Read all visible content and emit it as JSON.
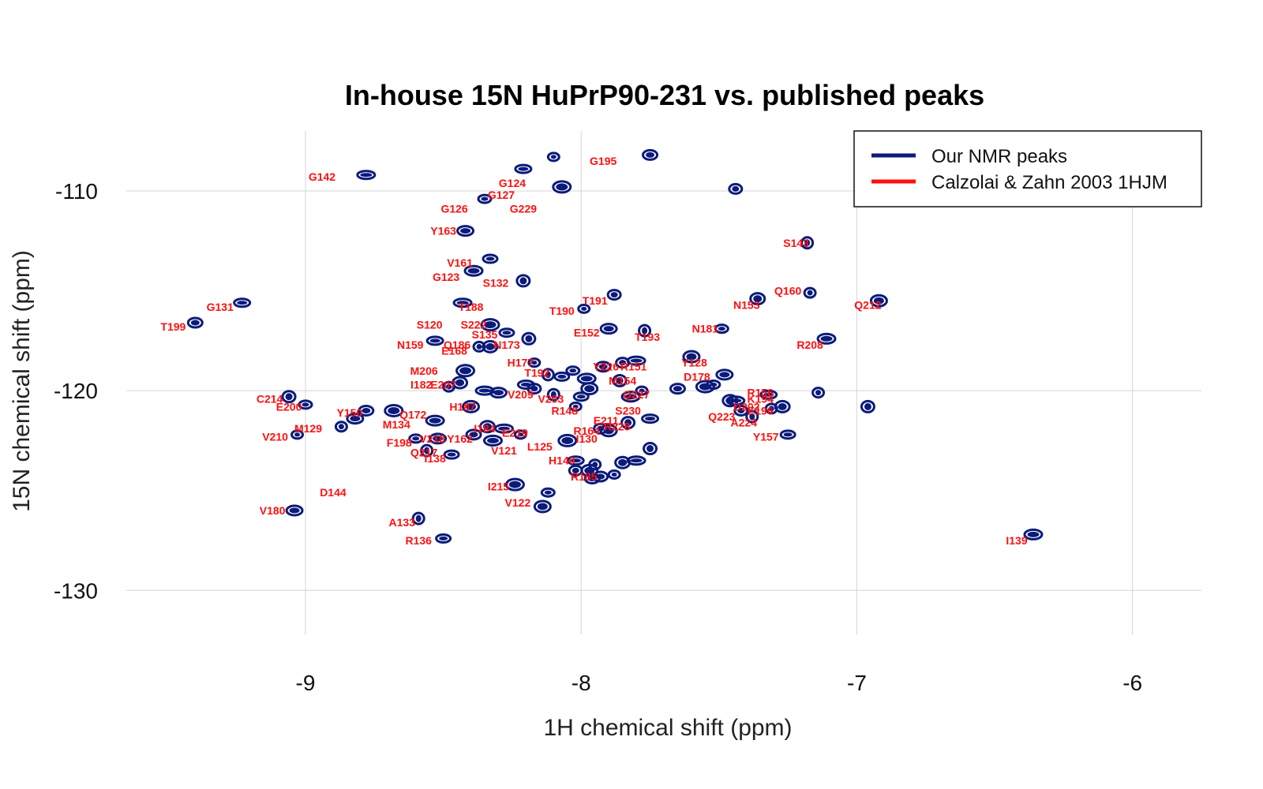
{
  "chart_data": {
    "type": "scatter",
    "title": "In-house 15N HuPrP90-231 vs. published peaks",
    "xlabel": "1H chemical shift (ppm)",
    "ylabel": "15N chemical shift (ppm)",
    "xlim": [
      -9.65,
      -5.75
    ],
    "ylim": [
      -132.2,
      -107.0
    ],
    "x_ticks": [
      -9,
      -8,
      -7,
      -6
    ],
    "y_ticks": [
      -110,
      -120,
      -130
    ],
    "x_tick_labels": [
      "-9",
      "-8",
      "-7",
      "-6"
    ],
    "y_tick_labels": [
      "-110",
      "-120",
      "-130"
    ],
    "grid": true,
    "legend_position": "top-right",
    "colors": {
      "ours": "#0b1b7a",
      "published": "#ff1010",
      "grid": "#d4d4d4"
    },
    "series": [
      {
        "name": "Our NMR peaks",
        "points": [
          [
            -8.1,
            -108.3
          ],
          [
            -7.75,
            -108.2
          ],
          [
            -8.07,
            -109.8
          ],
          [
            -8.35,
            -110.4
          ],
          [
            -8.42,
            -112.0
          ],
          [
            -7.18,
            -112.6
          ],
          [
            -8.33,
            -113.4
          ],
          [
            -8.39,
            -114.0
          ],
          [
            -8.21,
            -114.5
          ],
          [
            -9.23,
            -115.6
          ],
          [
            -7.17,
            -115.1
          ],
          [
            -7.36,
            -115.4
          ],
          [
            -8.43,
            -115.6
          ],
          [
            -7.88,
            -115.2
          ],
          [
            -6.92,
            -115.5
          ],
          [
            -7.99,
            -115.9
          ],
          [
            -9.4,
            -116.6
          ],
          [
            -8.33,
            -116.7
          ],
          [
            -7.49,
            -116.9
          ],
          [
            -7.9,
            -116.9
          ],
          [
            -7.77,
            -117.0
          ],
          [
            -8.27,
            -117.1
          ],
          [
            -7.11,
            -117.4
          ],
          [
            -8.19,
            -117.4
          ],
          [
            -8.53,
            -117.5
          ],
          [
            -8.37,
            -117.8
          ],
          [
            -8.33,
            -117.8
          ],
          [
            -7.8,
            -118.5
          ],
          [
            -7.85,
            -118.6
          ],
          [
            -7.6,
            -118.3
          ],
          [
            -8.17,
            -118.6
          ],
          [
            -7.92,
            -118.8
          ],
          [
            -8.42,
            -119.0
          ],
          [
            -8.03,
            -119.0
          ],
          [
            -7.48,
            -119.2
          ],
          [
            -8.12,
            -119.2
          ],
          [
            -8.07,
            -119.3
          ],
          [
            -7.98,
            -119.4
          ],
          [
            -7.86,
            -119.5
          ],
          [
            -8.2,
            -119.7
          ],
          [
            -8.48,
            -119.8
          ],
          [
            -8.44,
            -119.6
          ],
          [
            -8.35,
            -120.0
          ],
          [
            -8.17,
            -119.9
          ],
          [
            -7.97,
            -119.9
          ],
          [
            -7.78,
            -120.0
          ],
          [
            -7.65,
            -119.9
          ],
          [
            -7.55,
            -119.8
          ],
          [
            -7.52,
            -119.7
          ],
          [
            -8.3,
            -120.1
          ],
          [
            -8.1,
            -120.2
          ],
          [
            -8.0,
            -120.3
          ],
          [
            -7.82,
            -120.3
          ],
          [
            -9.06,
            -120.3
          ],
          [
            -7.32,
            -120.2
          ],
          [
            -7.31,
            -120.9
          ],
          [
            -7.27,
            -120.8
          ],
          [
            -7.44,
            -120.5
          ],
          [
            -7.42,
            -121.0
          ],
          [
            -8.4,
            -120.8
          ],
          [
            -8.02,
            -120.8
          ],
          [
            -8.78,
            -121.0
          ],
          [
            -8.68,
            -121.0
          ],
          [
            -9.0,
            -120.7
          ],
          [
            -8.82,
            -121.4
          ],
          [
            -7.38,
            -121.3
          ],
          [
            -7.25,
            -122.2
          ],
          [
            -8.53,
            -121.5
          ],
          [
            -7.83,
            -121.6
          ],
          [
            -7.75,
            -121.4
          ],
          [
            -8.87,
            -121.8
          ],
          [
            -8.34,
            -121.8
          ],
          [
            -8.28,
            -121.9
          ],
          [
            -7.93,
            -121.9
          ],
          [
            -7.9,
            -122.0
          ],
          [
            -9.03,
            -122.2
          ],
          [
            -8.39,
            -122.2
          ],
          [
            -8.05,
            -122.5
          ],
          [
            -8.6,
            -122.4
          ],
          [
            -8.52,
            -122.4
          ],
          [
            -8.56,
            -123.0
          ],
          [
            -8.47,
            -123.2
          ],
          [
            -8.32,
            -122.5
          ],
          [
            -7.75,
            -122.9
          ],
          [
            -8.02,
            -123.5
          ],
          [
            -7.95,
            -123.7
          ],
          [
            -7.85,
            -123.6
          ],
          [
            -7.8,
            -123.5
          ],
          [
            -8.02,
            -124.0
          ],
          [
            -7.97,
            -124.0
          ],
          [
            -7.88,
            -124.2
          ],
          [
            -7.96,
            -124.4
          ],
          [
            -8.24,
            -124.7
          ],
          [
            -8.12,
            -125.1
          ],
          [
            -9.04,
            -126.0
          ],
          [
            -8.59,
            -126.4
          ],
          [
            -8.5,
            -127.4
          ],
          [
            -6.36,
            -127.2
          ],
          [
            -6.96,
            -120.8
          ],
          [
            -8.21,
            -108.9
          ],
          [
            -7.14,
            -120.1
          ],
          [
            -7.46,
            -120.5
          ],
          [
            -8.78,
            -109.2
          ],
          [
            -7.44,
            -109.9
          ],
          [
            -8.14,
            -125.8
          ],
          [
            -8.22,
            -122.2
          ],
          [
            -7.93,
            -124.3
          ]
        ]
      },
      {
        "name": "Calzolai & Zahn 2003 1HJM",
        "points": [
          {
            "label": "G195",
            "x": -7.92,
            "y": -108.5
          },
          {
            "label": "G142",
            "x": -8.94,
            "y": -109.3
          },
          {
            "label": "G124",
            "x": -8.25,
            "y": -109.6
          },
          {
            "label": "G127",
            "x": -8.29,
            "y": -110.2
          },
          {
            "label": "G126",
            "x": -8.46,
            "y": -110.9
          },
          {
            "label": "G229",
            "x": -8.21,
            "y": -110.9
          },
          {
            "label": "Y163",
            "x": -8.5,
            "y": -112.0
          },
          {
            "label": "S143",
            "x": -7.22,
            "y": -112.6
          },
          {
            "label": "V161",
            "x": -8.44,
            "y": -113.6
          },
          {
            "label": "G123",
            "x": -8.49,
            "y": -114.3
          },
          {
            "label": "S132",
            "x": -8.31,
            "y": -114.6
          },
          {
            "label": "Q160",
            "x": -7.25,
            "y": -115.0
          },
          {
            "label": "T191",
            "x": -7.95,
            "y": -115.5
          },
          {
            "label": "N153",
            "x": -7.4,
            "y": -115.7
          },
          {
            "label": "Q212",
            "x": -6.96,
            "y": -115.7
          },
          {
            "label": "G131",
            "x": -9.31,
            "y": -115.8
          },
          {
            "label": "T188",
            "x": -8.4,
            "y": -115.8
          },
          {
            "label": "T190",
            "x": -8.07,
            "y": -116.0
          },
          {
            "label": "T199",
            "x": -9.48,
            "y": -116.8
          },
          {
            "label": "S120",
            "x": -8.55,
            "y": -116.7
          },
          {
            "label": "S222",
            "x": -8.39,
            "y": -116.7
          },
          {
            "label": "N181",
            "x": -7.55,
            "y": -116.9
          },
          {
            "label": "E152",
            "x": -7.98,
            "y": -117.1
          },
          {
            "label": "R208",
            "x": -7.17,
            "y": -117.7
          },
          {
            "label": "S135",
            "x": -8.35,
            "y": -117.2
          },
          {
            "label": "T193",
            "x": -7.76,
            "y": -117.3
          },
          {
            "label": "N159",
            "x": -8.62,
            "y": -117.7
          },
          {
            "label": "N173",
            "x": -8.27,
            "y": -117.7
          },
          {
            "label": "Q186",
            "x": -8.45,
            "y": -117.7
          },
          {
            "label": "E168",
            "x": -8.46,
            "y": -118.0
          },
          {
            "label": "H177",
            "x": -8.22,
            "y": -118.6
          },
          {
            "label": "Y128",
            "x": -7.59,
            "y": -118.6
          },
          {
            "label": "R151",
            "x": -7.81,
            "y": -118.8
          },
          {
            "label": "Y226",
            "x": -7.91,
            "y": -118.8
          },
          {
            "label": "M206",
            "x": -8.57,
            "y": -119.0
          },
          {
            "label": "T192",
            "x": -8.16,
            "y": -119.1
          },
          {
            "label": "D178",
            "x": -7.58,
            "y": -119.3
          },
          {
            "label": "M154",
            "x": -7.85,
            "y": -119.5
          },
          {
            "label": "I182",
            "x": -8.58,
            "y": -119.7
          },
          {
            "label": "E207",
            "x": -8.5,
            "y": -119.7
          },
          {
            "label": "R156",
            "x": -7.35,
            "y": -120.1
          },
          {
            "label": "C214",
            "x": -9.13,
            "y": -120.4
          },
          {
            "label": "V209",
            "x": -8.22,
            "y": -120.2
          },
          {
            "label": "V203",
            "x": -8.11,
            "y": -120.4
          },
          {
            "label": "Q227",
            "x": -7.8,
            "y": -120.2
          },
          {
            "label": "K194",
            "x": -7.35,
            "y": -120.4
          },
          {
            "label": "E200",
            "x": -9.06,
            "y": -120.8
          },
          {
            "label": "H187",
            "x": -8.43,
            "y": -120.8
          },
          {
            "label": "D202",
            "x": -7.4,
            "y": -120.8
          },
          {
            "label": "E196",
            "x": -7.35,
            "y": -121.0
          },
          {
            "label": "R148",
            "x": -8.06,
            "y": -121.0
          },
          {
            "label": "S230",
            "x": -7.83,
            "y": -121.0
          },
          {
            "label": "Q223",
            "x": -7.49,
            "y": -121.3
          },
          {
            "label": "A224",
            "x": -7.41,
            "y": -121.6
          },
          {
            "label": "Y150",
            "x": -8.84,
            "y": -121.1
          },
          {
            "label": "Q172",
            "x": -8.61,
            "y": -121.2
          },
          {
            "label": "E211",
            "x": -7.91,
            "y": -121.5
          },
          {
            "label": "M134",
            "x": -8.67,
            "y": -121.7
          },
          {
            "label": "M129",
            "x": -8.99,
            "y": -121.9
          },
          {
            "label": "I184",
            "x": -8.35,
            "y": -121.9
          },
          {
            "label": "R228",
            "x": -7.87,
            "y": -121.8
          },
          {
            "label": "R164",
            "x": -7.98,
            "y": -122.0
          },
          {
            "label": "E219",
            "x": -8.24,
            "y": -122.1
          },
          {
            "label": "Y157",
            "x": -7.33,
            "y": -122.3
          },
          {
            "label": "V210",
            "x": -9.11,
            "y": -122.3
          },
          {
            "label": "V218",
            "x": -8.54,
            "y": -122.4
          },
          {
            "label": "Y162",
            "x": -8.44,
            "y": -122.4
          },
          {
            "label": "I130",
            "x": -7.98,
            "y": -122.4
          },
          {
            "label": "F198",
            "x": -8.66,
            "y": -122.6
          },
          {
            "label": "L125",
            "x": -8.15,
            "y": -122.8
          },
          {
            "label": "V121",
            "x": -8.28,
            "y": -123.0
          },
          {
            "label": "Q217",
            "x": -8.57,
            "y": -123.1
          },
          {
            "label": "I138",
            "x": -8.53,
            "y": -123.4
          },
          {
            "label": "H140",
            "x": -8.07,
            "y": -123.5
          },
          {
            "label": "R136",
            "x": -8.59,
            "y": -127.5
          },
          {
            "label": "D144",
            "x": -8.9,
            "y": -125.1
          },
          {
            "label": "V180",
            "x": -9.12,
            "y": -126.0
          },
          {
            "label": "I215",
            "x": -8.3,
            "y": -124.8
          },
          {
            "label": "V122",
            "x": -8.23,
            "y": -125.6
          },
          {
            "label": "A133",
            "x": -8.65,
            "y": -126.6
          },
          {
            "label": "I139",
            "x": -6.42,
            "y": -127.5
          },
          {
            "label": "R185",
            "x": -7.99,
            "y": -124.3
          }
        ]
      }
    ]
  }
}
